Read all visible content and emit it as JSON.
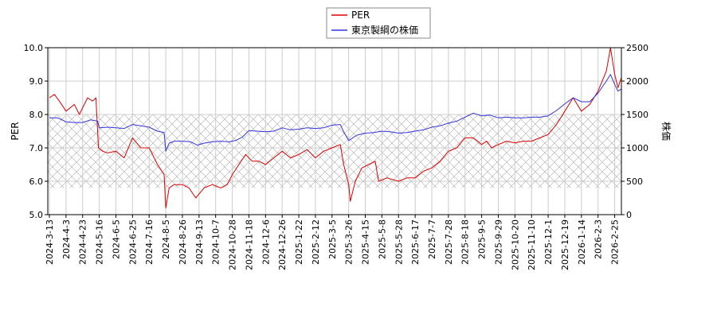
{
  "chart_data": {
    "type": "line",
    "legend": {
      "placement": "top-center",
      "entries": [
        "PER",
        "東京製綱の株価"
      ]
    },
    "grid": true,
    "shaded_band": {
      "axis": "left",
      "range": [
        5.8,
        8.0
      ],
      "pattern": "crosshatch"
    },
    "x": {
      "label": "",
      "ticks": [
        "2024-3-13",
        "2024-4-3",
        "2024-4-23",
        "2024-5-16",
        "2024-6-5",
        "2024-6-25",
        "2024-7-16",
        "2024-8-5",
        "2024-8-26",
        "2024-9-13",
        "2024-10-7",
        "2024-10-28",
        "2024-11-18",
        "2024-12-6",
        "2024-12-26",
        "2025-1-22",
        "2025-2-12",
        "2025-3-5",
        "2025-3-26",
        "2025-4-15",
        "2025-5-8",
        "2025-5-28",
        "2025-6-17",
        "2025-7-7",
        "2025-7-28",
        "2025-8-18",
        "2025-9-5",
        "2025-9-29",
        "2025-10-20",
        "2025-11-10",
        "2025-12-1",
        "2025-12-19",
        "2026-1-14",
        "2026-2-3",
        "2026-2-25"
      ]
    },
    "y_left": {
      "label": "PER",
      "ylim": [
        5.0,
        10.0
      ],
      "ticks": [
        "5.0",
        "6.0",
        "7.0",
        "8.0",
        "9.0",
        "10.0"
      ]
    },
    "y_right": {
      "label": "株価",
      "ylim": [
        0,
        2500
      ],
      "ticks": [
        "0",
        "500",
        "1000",
        "1500",
        "2000",
        "2500"
      ]
    },
    "series": [
      {
        "name": "PER",
        "color": "#dd0000",
        "axis": "left",
        "points": [
          [
            0,
            8.5
          ],
          [
            0.3,
            8.6
          ],
          [
            0.6,
            8.4
          ],
          [
            1,
            8.1
          ],
          [
            1.5,
            8.3
          ],
          [
            1.8,
            8.0
          ],
          [
            2,
            8.2
          ],
          [
            2.3,
            8.5
          ],
          [
            2.6,
            8.4
          ],
          [
            2.8,
            8.5
          ],
          [
            2.95,
            7.0
          ],
          [
            3.2,
            6.9
          ],
          [
            3.5,
            6.85
          ],
          [
            4,
            6.9
          ],
          [
            4.5,
            6.7
          ],
          [
            5,
            7.3
          ],
          [
            5.5,
            7.0
          ],
          [
            6,
            7.0
          ],
          [
            6.5,
            6.5
          ],
          [
            6.9,
            6.2
          ],
          [
            7.0,
            5.2
          ],
          [
            7.2,
            5.8
          ],
          [
            7.5,
            5.9
          ],
          [
            8,
            5.9
          ],
          [
            8.4,
            5.8
          ],
          [
            8.8,
            5.5
          ],
          [
            9.3,
            5.8
          ],
          [
            9.8,
            5.9
          ],
          [
            10.3,
            5.8
          ],
          [
            10.7,
            5.9
          ],
          [
            11,
            6.2
          ],
          [
            11.4,
            6.5
          ],
          [
            11.8,
            6.8
          ],
          [
            12.2,
            6.6
          ],
          [
            12.6,
            6.6
          ],
          [
            13,
            6.5
          ],
          [
            13.5,
            6.7
          ],
          [
            14,
            6.9
          ],
          [
            14.5,
            6.7
          ],
          [
            15,
            6.8
          ],
          [
            15.5,
            6.95
          ],
          [
            16,
            6.7
          ],
          [
            16.5,
            6.9
          ],
          [
            17,
            7.0
          ],
          [
            17.5,
            7.1
          ],
          [
            17.7,
            6.5
          ],
          [
            18,
            5.9
          ],
          [
            18.1,
            5.4
          ],
          [
            18.4,
            6.0
          ],
          [
            18.8,
            6.4
          ],
          [
            19.2,
            6.5
          ],
          [
            19.6,
            6.6
          ],
          [
            19.8,
            6.0
          ],
          [
            20.3,
            6.1
          ],
          [
            21,
            6.0
          ],
          [
            21.5,
            6.1
          ],
          [
            22,
            6.1
          ],
          [
            22.5,
            6.3
          ],
          [
            23,
            6.4
          ],
          [
            23.5,
            6.6
          ],
          [
            24,
            6.9
          ],
          [
            24.5,
            7.0
          ],
          [
            25,
            7.3
          ],
          [
            25.5,
            7.3
          ],
          [
            26,
            7.1
          ],
          [
            26.3,
            7.2
          ],
          [
            26.6,
            7.0
          ],
          [
            27,
            7.1
          ],
          [
            27.5,
            7.2
          ],
          [
            28,
            7.15
          ],
          [
            28.5,
            7.2
          ],
          [
            29,
            7.2
          ],
          [
            29.5,
            7.3
          ],
          [
            30,
            7.4
          ],
          [
            30.5,
            7.7
          ],
          [
            31,
            8.1
          ],
          [
            31.5,
            8.5
          ],
          [
            32,
            8.1
          ],
          [
            32.5,
            8.3
          ],
          [
            33,
            8.7
          ],
          [
            33.5,
            9.3
          ],
          [
            33.75,
            10.0
          ],
          [
            34,
            9.2
          ],
          [
            34.2,
            8.8
          ],
          [
            34.4,
            9.1
          ]
        ]
      },
      {
        "name": "東京製綱の株価",
        "color": "#3333dd",
        "axis": "right",
        "points": [
          [
            0,
            1450
          ],
          [
            0.5,
            1450
          ],
          [
            1,
            1390
          ],
          [
            1.5,
            1380
          ],
          [
            2,
            1380
          ],
          [
            2.5,
            1420
          ],
          [
            2.9,
            1400
          ],
          [
            3.0,
            1300
          ],
          [
            3.5,
            1310
          ],
          [
            4,
            1300
          ],
          [
            4.5,
            1290
          ],
          [
            5,
            1350
          ],
          [
            5.5,
            1330
          ],
          [
            6,
            1310
          ],
          [
            6.5,
            1250
          ],
          [
            6.9,
            1230
          ],
          [
            7.0,
            950
          ],
          [
            7.2,
            1070
          ],
          [
            7.5,
            1100
          ],
          [
            8,
            1100
          ],
          [
            8.5,
            1090
          ],
          [
            8.9,
            1040
          ],
          [
            9.3,
            1070
          ],
          [
            9.8,
            1090
          ],
          [
            10.3,
            1100
          ],
          [
            10.8,
            1090
          ],
          [
            11.2,
            1110
          ],
          [
            11.6,
            1160
          ],
          [
            12,
            1260
          ],
          [
            12.5,
            1250
          ],
          [
            13,
            1240
          ],
          [
            13.5,
            1250
          ],
          [
            14,
            1300
          ],
          [
            14.5,
            1270
          ],
          [
            15,
            1280
          ],
          [
            15.5,
            1300
          ],
          [
            16,
            1290
          ],
          [
            16.5,
            1300
          ],
          [
            17,
            1340
          ],
          [
            17.5,
            1350
          ],
          [
            17.7,
            1240
          ],
          [
            18,
            1110
          ],
          [
            18.5,
            1190
          ],
          [
            19,
            1220
          ],
          [
            19.5,
            1230
          ],
          [
            20,
            1250
          ],
          [
            20.5,
            1240
          ],
          [
            21,
            1220
          ],
          [
            21.5,
            1230
          ],
          [
            22,
            1250
          ],
          [
            22.5,
            1270
          ],
          [
            23,
            1310
          ],
          [
            23.5,
            1330
          ],
          [
            24,
            1370
          ],
          [
            24.5,
            1400
          ],
          [
            25,
            1460
          ],
          [
            25.5,
            1520
          ],
          [
            26,
            1480
          ],
          [
            26.5,
            1490
          ],
          [
            27,
            1450
          ],
          [
            27.5,
            1460
          ],
          [
            28,
            1450
          ],
          [
            28.5,
            1450
          ],
          [
            29,
            1460
          ],
          [
            29.5,
            1460
          ],
          [
            30,
            1480
          ],
          [
            30.5,
            1560
          ],
          [
            31,
            1660
          ],
          [
            31.5,
            1750
          ],
          [
            32,
            1690
          ],
          [
            32.5,
            1690
          ],
          [
            33,
            1820
          ],
          [
            33.5,
            2000
          ],
          [
            33.75,
            2100
          ],
          [
            34,
            1950
          ],
          [
            34.2,
            1850
          ],
          [
            34.4,
            1880
          ]
        ]
      }
    ]
  }
}
